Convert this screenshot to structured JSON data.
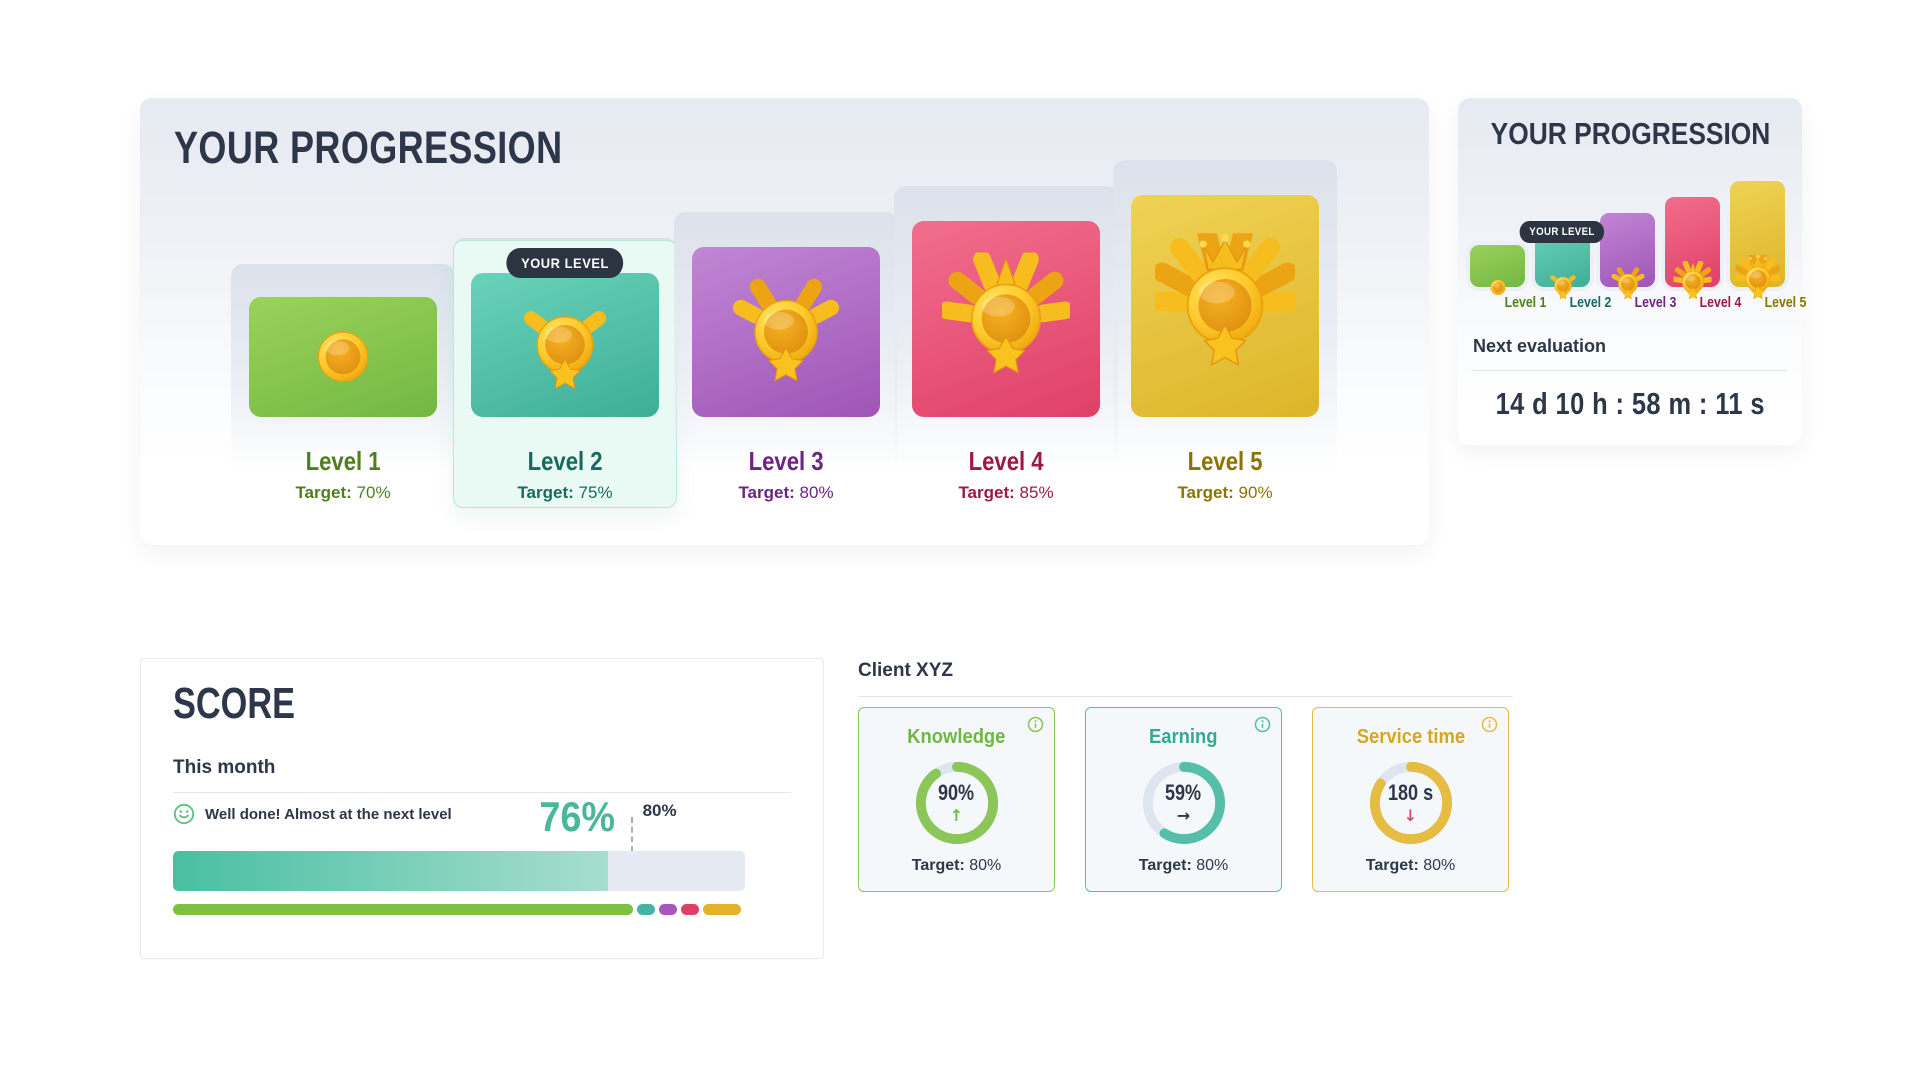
{
  "main_progression": {
    "title": "YOUR PROGRESSION",
    "badge": "YOUR LEVEL",
    "current_level": "Level 2"
  },
  "levels": [
    {
      "label": "Level 1",
      "target_prefix": "Target:",
      "target": "70%",
      "label_color": "#4f7e1d",
      "grad": [
        "#9bd25b",
        "#72b843"
      ]
    },
    {
      "label": "Level 2",
      "target_prefix": "Target:",
      "target": "75%",
      "label_color": "#176a5d",
      "grad": [
        "#69d2ba",
        "#3fae96"
      ]
    },
    {
      "label": "Level 3",
      "target_prefix": "Target:",
      "target": "80%",
      "label_color": "#6e2384",
      "grad": [
        "#c186d5",
        "#9f55b5"
      ]
    },
    {
      "label": "Level 4",
      "target_prefix": "Target:",
      "target": "85%",
      "label_color": "#9e1843",
      "grad": [
        "#f16e8c",
        "#e04069"
      ]
    },
    {
      "label": "Level 5",
      "target_prefix": "Target:",
      "target": "90%",
      "label_color": "#8a7300",
      "grad": [
        "#f0d254",
        "#ddb52a"
      ]
    }
  ],
  "side_progression": {
    "title": "YOUR PROGRESSION",
    "badge": "YOUR LEVEL",
    "next_evaluation_label": "Next evaluation",
    "countdown": "14 d  10 h : 58 m : 11 s"
  },
  "score": {
    "title": "SCORE",
    "period": "This month",
    "message": "Well done! Almost at the next level",
    "value": 76,
    "value_label": "76%",
    "target": 80,
    "target_label": "80%",
    "smiley_color": "#5fc37f",
    "value_color": "#48b79c",
    "segments": [
      {
        "name": "level-1",
        "color": "#7cc142",
        "pct": 80.4
      },
      {
        "name": "level-2",
        "color": "#43b3a4",
        "pct": 3.1
      },
      {
        "name": "level-3",
        "color": "#a458b8",
        "pct": 3.3
      },
      {
        "name": "level-4",
        "color": "#dd3f66",
        "pct": 3.1
      },
      {
        "name": "level-5",
        "color": "#e4b226",
        "pct": 6.6
      }
    ]
  },
  "client": {
    "heading": "Client XYZ",
    "cards": [
      {
        "title": "Knowledge",
        "accent": "#8cc558",
        "title_color": "#6cb842",
        "value": "90%",
        "percent": 90,
        "arrow": "↑",
        "arrow_color": "#6cbf45",
        "target_prefix": "Target:",
        "target": "80%"
      },
      {
        "title": "Earning",
        "accent": "#56bfa9",
        "title_color": "#34a891",
        "value": "59%",
        "percent": 59,
        "arrow": "→",
        "arrow_color": "#2d3748",
        "target_prefix": "Target:",
        "target": "80%"
      },
      {
        "title": "Service time",
        "accent": "#e5bd45",
        "title_color": "#d7a61f",
        "value": "180 s",
        "percent": 84,
        "arrow": "↓",
        "arrow_color": "#d84a6b",
        "target_prefix": "Target:",
        "target": "80%"
      }
    ]
  }
}
